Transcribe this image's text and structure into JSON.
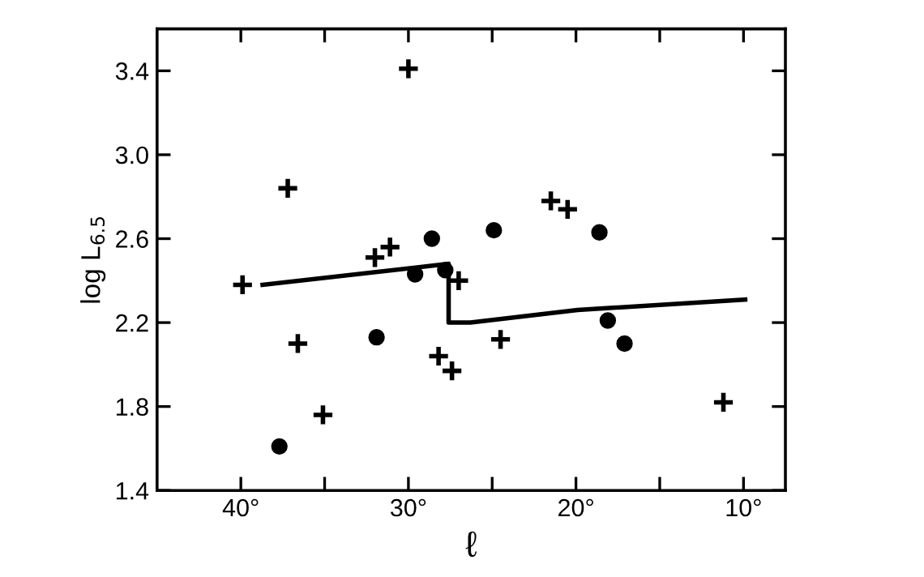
{
  "chart_data": {
    "type": "scatter",
    "xlabel": "ℓ",
    "ylabel": "log L$_{6.5}$",
    "xlim": [
      45,
      7.5
    ],
    "ylim": [
      1.4,
      3.6
    ],
    "xticks": [
      {
        "value": 40,
        "label": "40°"
      },
      {
        "value": 35,
        "label": null
      },
      {
        "value": 30,
        "label": "30°"
      },
      {
        "value": 25,
        "label": null
      },
      {
        "value": 20,
        "label": "20°"
      },
      {
        "value": 15,
        "label": null
      },
      {
        "value": 10,
        "label": "10°"
      }
    ],
    "yticks": [
      1.4,
      1.8,
      2.2,
      2.6,
      {
        "value": 3.0,
        "label": "3.0"
      },
      3.4
    ],
    "grid": false,
    "series": [
      {
        "marker": "cross",
        "color": "#000000",
        "x": [
          30.0,
          37.2,
          39.9,
          32.0,
          31.1,
          27.0,
          36.6,
          28.2,
          27.4,
          35.1,
          24.5,
          21.5,
          20.5,
          11.2
        ],
        "values": [
          3.41,
          2.84,
          2.38,
          2.51,
          2.56,
          2.4,
          2.1,
          2.04,
          1.97,
          1.76,
          2.12,
          2.78,
          2.74,
          1.82
        ]
      },
      {
        "marker": "circle",
        "color": "#000000",
        "x": [
          28.6,
          24.9,
          29.6,
          27.8,
          31.9,
          37.7,
          18.6,
          18.1,
          17.1
        ],
        "values": [
          2.6,
          2.64,
          2.43,
          2.45,
          2.13,
          1.61,
          2.63,
          2.21,
          2.1
        ]
      },
      {
        "type": "line",
        "line_style": "solid",
        "color": "#000000",
        "x": [
          38.7,
          27.6,
          27.6,
          26.3,
          19.9,
          9.9
        ],
        "values": [
          2.38,
          2.48,
          2.2,
          2.2,
          2.26,
          2.31
        ]
      }
    ]
  }
}
